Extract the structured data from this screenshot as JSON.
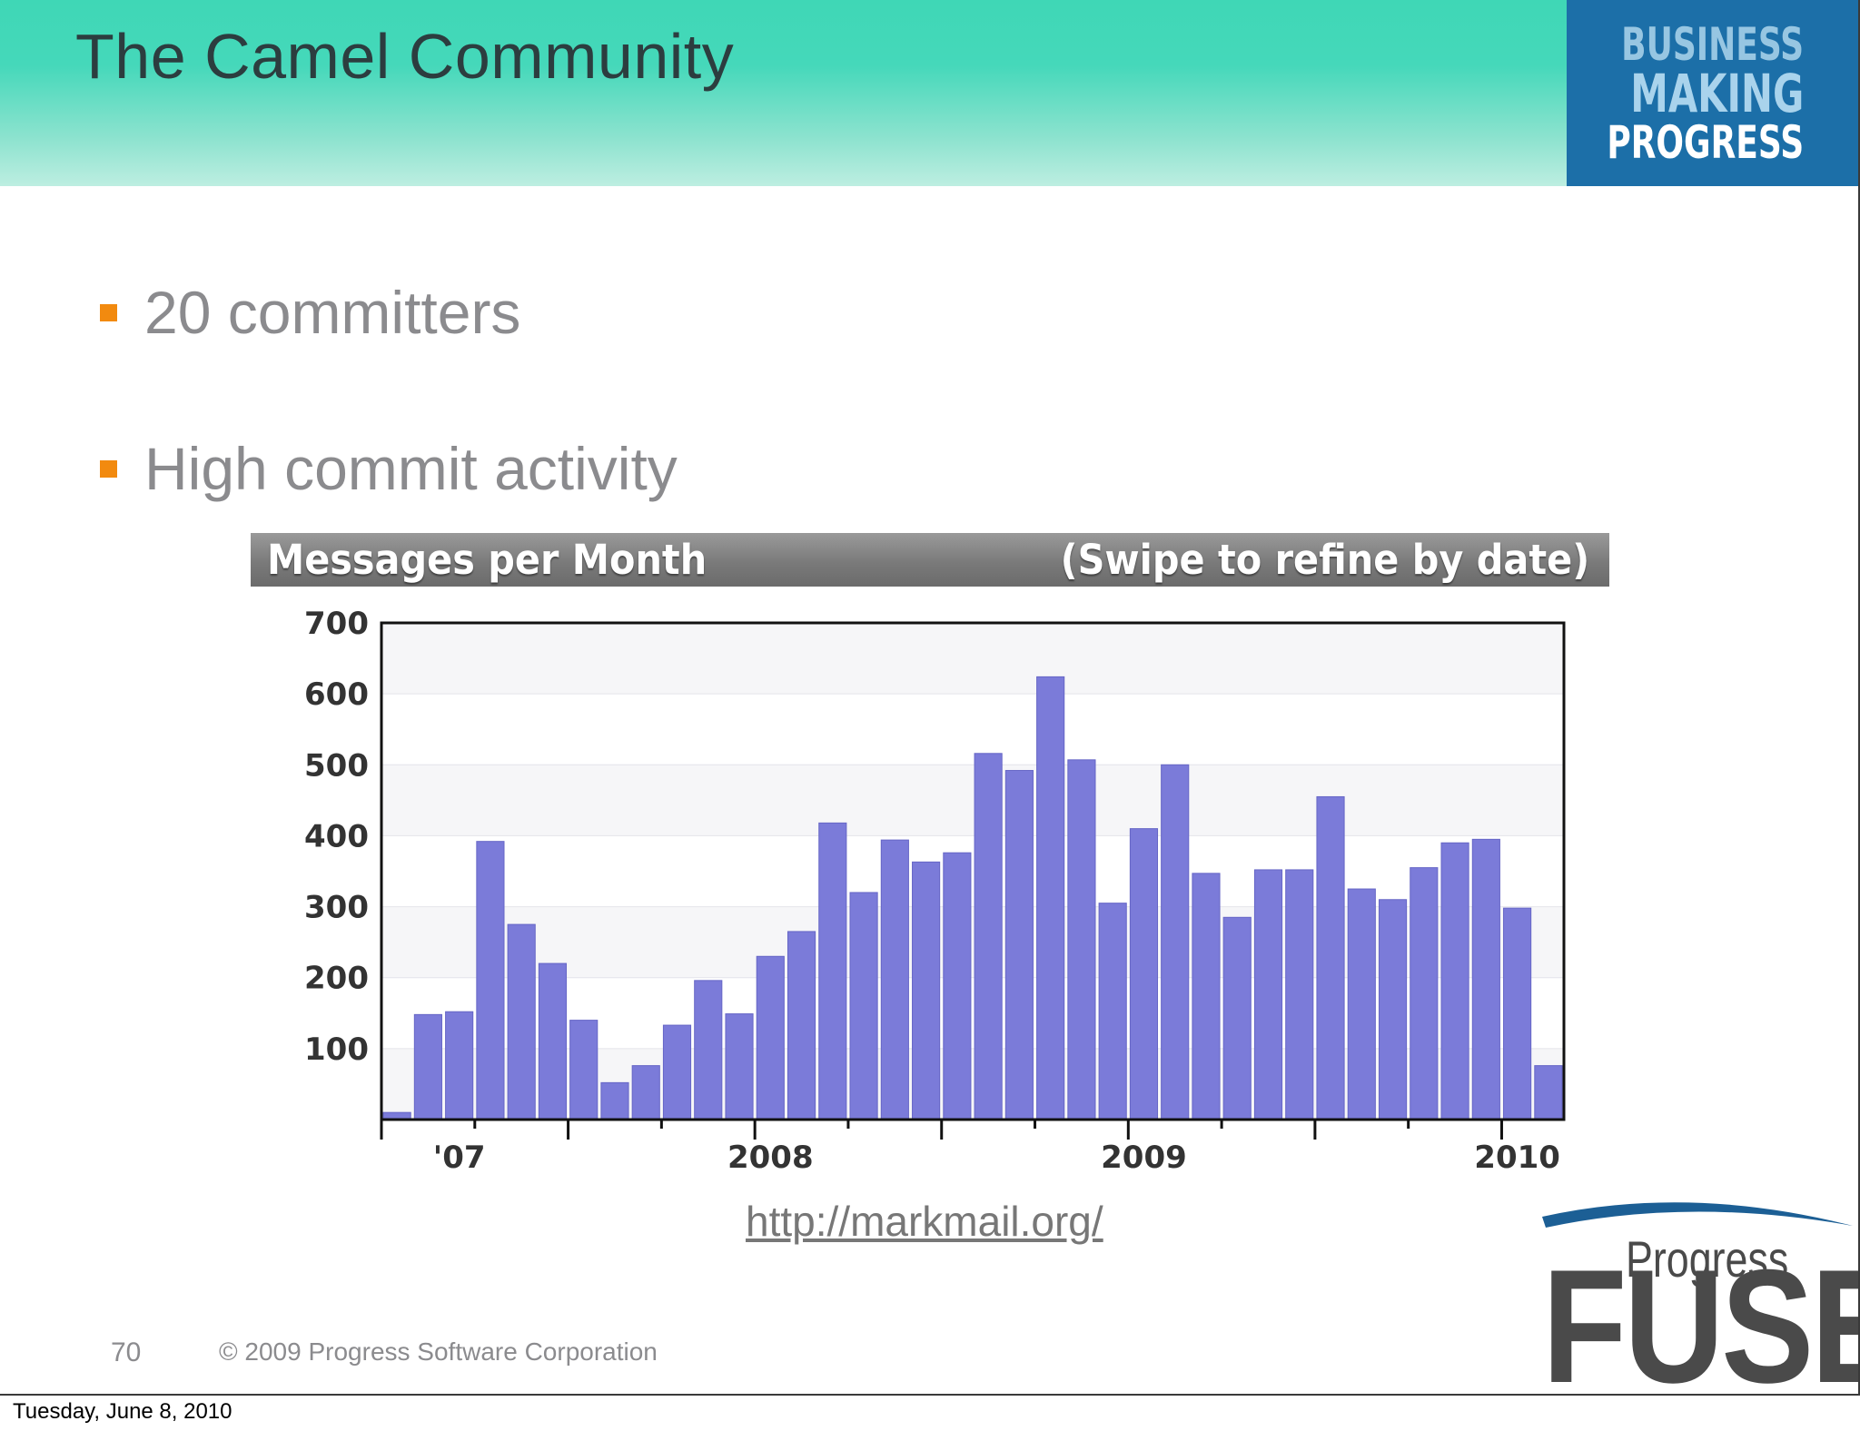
{
  "slide": {
    "title": "The Camel Community",
    "brand": {
      "line1": "BUSINESS",
      "line2": "MAKING",
      "line3": "PROGRESS"
    },
    "bullets": [
      {
        "text": "20 committers"
      },
      {
        "text": "High commit activity"
      }
    ],
    "chart_header": {
      "left": "Messages per Month",
      "right": "(Swipe to refine by date)"
    },
    "link": "http://markmail.org/",
    "page_number": "70",
    "copyright": "© 2009 Progress Software Corporation",
    "logo": {
      "small": "Progress",
      "large": "FUSE"
    },
    "colors": {
      "header_teal": "#45d8ba",
      "brand_blue": "#1c6fa8",
      "bullet_orange": "#f28a0f",
      "bar_purple": "#7b7bd9"
    }
  },
  "footer_date": "Tuesday, June 8, 2010",
  "chart_data": {
    "type": "bar",
    "title": "Messages per Month",
    "ylim": [
      0,
      700
    ],
    "yticks": [
      100,
      200,
      300,
      400,
      500,
      600,
      700
    ],
    "grid": true,
    "x_labels": [
      {
        "label": "'07",
        "month": "2007-03"
      },
      {
        "label": "2008",
        "month": "2008-01"
      },
      {
        "label": "2009",
        "month": "2009-01"
      },
      {
        "label": "2010",
        "month": "2010-01"
      }
    ],
    "categories": [
      "2007-01",
      "2007-02",
      "2007-03",
      "2007-04",
      "2007-05",
      "2007-06",
      "2007-07",
      "2007-08",
      "2007-09",
      "2007-10",
      "2007-11",
      "2007-12",
      "2008-01",
      "2008-02",
      "2008-03",
      "2008-04",
      "2008-05",
      "2008-06",
      "2008-07",
      "2008-08",
      "2008-09",
      "2008-10",
      "2008-11",
      "2008-12",
      "2009-01",
      "2009-02",
      "2009-03",
      "2009-04",
      "2009-05",
      "2009-06",
      "2009-07",
      "2009-08",
      "2009-09",
      "2009-10",
      "2009-11",
      "2009-12",
      "2010-01",
      "2010-02"
    ],
    "values": [
      10,
      148,
      152,
      392,
      275,
      220,
      140,
      52,
      76,
      133,
      196,
      149,
      230,
      265,
      418,
      320,
      394,
      363,
      376,
      516,
      492,
      624,
      507,
      305,
      410,
      500,
      347,
      285,
      352,
      352,
      455,
      325,
      310,
      355,
      390,
      395,
      298,
      76
    ]
  }
}
